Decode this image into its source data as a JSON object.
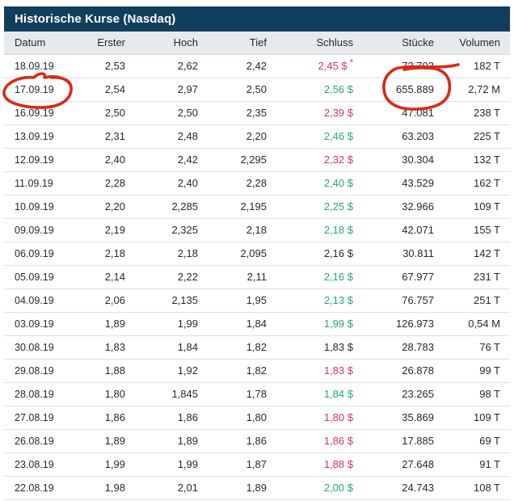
{
  "title": "Historische Kurse (Nasdaq)",
  "colors": {
    "title_bar": "#113e5d",
    "header_bg": "#e7eaec",
    "up": "#23a87b",
    "down": "#df3158",
    "neutral": "#26282a",
    "annotation": "#da2917"
  },
  "table": {
    "columns": [
      "Datum",
      "Erster",
      "Hoch",
      "Tief",
      "Schluss",
      "Stücke",
      "Volumen"
    ],
    "rows": [
      {
        "datum": "18.09.19",
        "erster": "2,53",
        "hoch": "2,62",
        "tief": "2,42",
        "schluss": "2,45 $",
        "trend": "down",
        "note": "*",
        "stuecke": "72.703",
        "volumen": "182 T"
      },
      {
        "datum": "17.09.19",
        "erster": "2,54",
        "hoch": "2,97",
        "tief": "2,50",
        "schluss": "2,56 $",
        "trend": "up",
        "note": "",
        "stuecke": "655.889",
        "volumen": "2,72 M"
      },
      {
        "datum": "16.09.19",
        "erster": "2,50",
        "hoch": "2,50",
        "tief": "2,35",
        "schluss": "2,39 $",
        "trend": "down",
        "note": "",
        "stuecke": "47.081",
        "volumen": "238 T"
      },
      {
        "datum": "13.09.19",
        "erster": "2,31",
        "hoch": "2,48",
        "tief": "2,20",
        "schluss": "2,46 $",
        "trend": "up",
        "note": "",
        "stuecke": "63.203",
        "volumen": "225 T"
      },
      {
        "datum": "12.09.19",
        "erster": "2,40",
        "hoch": "2,42",
        "tief": "2,295",
        "schluss": "2,32 $",
        "trend": "down",
        "note": "",
        "stuecke": "30.304",
        "volumen": "132 T"
      },
      {
        "datum": "11.09.19",
        "erster": "2,28",
        "hoch": "2,40",
        "tief": "2,28",
        "schluss": "2,40 $",
        "trend": "up",
        "note": "",
        "stuecke": "43.529",
        "volumen": "162 T"
      },
      {
        "datum": "10.09.19",
        "erster": "2,20",
        "hoch": "2,285",
        "tief": "2,195",
        "schluss": "2,25 $",
        "trend": "up",
        "note": "",
        "stuecke": "32.966",
        "volumen": "109 T"
      },
      {
        "datum": "09.09.19",
        "erster": "2,19",
        "hoch": "2,325",
        "tief": "2,18",
        "schluss": "2,18 $",
        "trend": "up",
        "note": "",
        "stuecke": "42.071",
        "volumen": "155 T"
      },
      {
        "datum": "06.09.19",
        "erster": "2,18",
        "hoch": "2,18",
        "tief": "2,095",
        "schluss": "2,16 $",
        "trend": "neutral",
        "note": "",
        "stuecke": "30.811",
        "volumen": "142 T"
      },
      {
        "datum": "05.09.19",
        "erster": "2,14",
        "hoch": "2,22",
        "tief": "2,11",
        "schluss": "2,16 $",
        "trend": "up",
        "note": "",
        "stuecke": "67.977",
        "volumen": "231 T"
      },
      {
        "datum": "04.09.19",
        "erster": "2,06",
        "hoch": "2,135",
        "tief": "1,95",
        "schluss": "2,13 $",
        "trend": "up",
        "note": "",
        "stuecke": "76.757",
        "volumen": "251 T"
      },
      {
        "datum": "03.09.19",
        "erster": "1,89",
        "hoch": "1,99",
        "tief": "1,84",
        "schluss": "1,99 $",
        "trend": "up",
        "note": "",
        "stuecke": "126.973",
        "volumen": "0,54 M"
      },
      {
        "datum": "30.08.19",
        "erster": "1,83",
        "hoch": "1,84",
        "tief": "1,82",
        "schluss": "1,83 $",
        "trend": "neutral",
        "note": "",
        "stuecke": "28.783",
        "volumen": "76 T"
      },
      {
        "datum": "29.08.19",
        "erster": "1,88",
        "hoch": "1,92",
        "tief": "1,82",
        "schluss": "1,83 $",
        "trend": "down",
        "note": "",
        "stuecke": "26.878",
        "volumen": "99 T"
      },
      {
        "datum": "28.08.19",
        "erster": "1,80",
        "hoch": "1,845",
        "tief": "1,78",
        "schluss": "1,84 $",
        "trend": "up",
        "note": "",
        "stuecke": "23.265",
        "volumen": "98 T"
      },
      {
        "datum": "27.08.19",
        "erster": "1,86",
        "hoch": "1,86",
        "tief": "1,80",
        "schluss": "1,80 $",
        "trend": "down",
        "note": "",
        "stuecke": "35.869",
        "volumen": "109 T"
      },
      {
        "datum": "26.08.19",
        "erster": "1,89",
        "hoch": "1,89",
        "tief": "1,86",
        "schluss": "1,86 $",
        "trend": "down",
        "note": "",
        "stuecke": "17.885",
        "volumen": "69 T"
      },
      {
        "datum": "23.08.19",
        "erster": "1,99",
        "hoch": "1,99",
        "tief": "1,87",
        "schluss": "1,88 $",
        "trend": "down",
        "note": "",
        "stuecke": "27.648",
        "volumen": "91 T"
      },
      {
        "datum": "22.08.19",
        "erster": "1,98",
        "hoch": "2,01",
        "tief": "1,89",
        "schluss": "2,00 $",
        "trend": "up",
        "note": "",
        "stuecke": "24.743",
        "volumen": "108 T"
      }
    ]
  },
  "annotations": {
    "circled_date": "17.09.19",
    "circled_stuecke": "655.889"
  }
}
